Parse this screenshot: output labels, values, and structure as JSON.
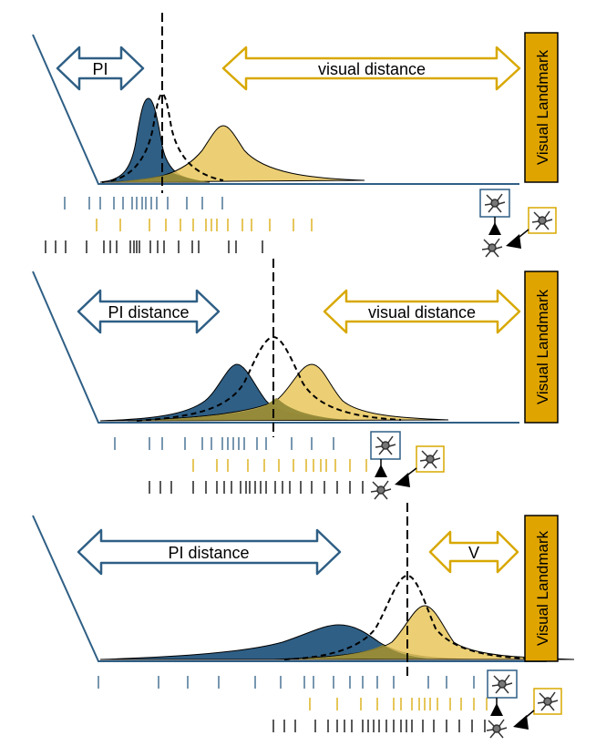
{
  "colors": {
    "pi": "#2f5f85",
    "visual": "#e9c75c",
    "visual_stroke": "#d8a800",
    "overlap": "#8f8535",
    "landmark_fill": "#e0a400",
    "axis": "#2f5f85",
    "ink": "#000000"
  },
  "panels": [
    {
      "pi_label": "PI",
      "visual_label": "visual distance",
      "landmark_label": "Visual Landmark"
    },
    {
      "pi_label": "PI distance",
      "visual_label": "visual distance",
      "landmark_label": "Visual Landmark"
    },
    {
      "pi_label": "PI distance",
      "visual_label": "V",
      "landmark_label": "Visual Landmark"
    }
  ],
  "icons": [
    "ant-icon"
  ]
}
